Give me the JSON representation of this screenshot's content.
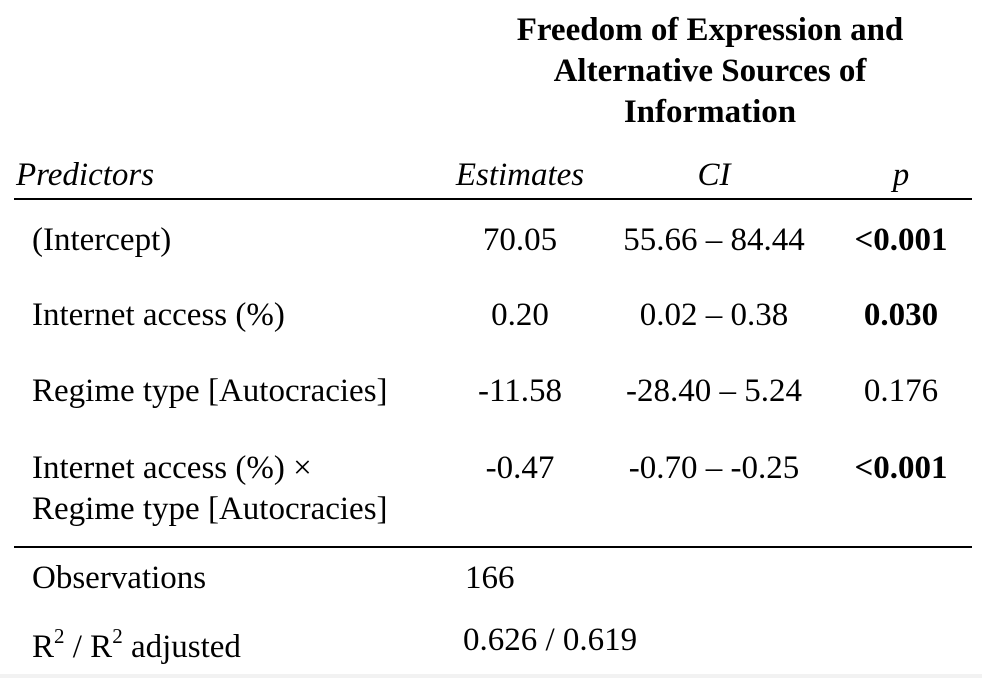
{
  "title_lines": [
    "Freedom of Expression and",
    "Alternative Sources of",
    "Information"
  ],
  "headers": {
    "predictors": "Predictors",
    "estimates": "Estimates",
    "ci": "CI",
    "p": "p"
  },
  "rows": [
    {
      "predictor": [
        "(Intercept)"
      ],
      "estimate": "70.05",
      "ci": "55.66 – 84.44",
      "p": "<0.001",
      "p_bold": true
    },
    {
      "predictor": [
        "Internet access (%)"
      ],
      "estimate": "0.20",
      "ci": "0.02 – 0.38",
      "p": "0.030",
      "p_bold": true
    },
    {
      "predictor": [
        "Regime type [Autocracies]"
      ],
      "estimate": "-11.58",
      "ci": "-28.40 – 5.24",
      "p": "0.176",
      "p_bold": false
    },
    {
      "predictor": [
        "Internet access (%) ×",
        "Regime type [Autocracies]"
      ],
      "estimate": "-0.47",
      "ci": "-0.70 – -0.25",
      "p": "<0.001",
      "p_bold": true
    }
  ],
  "stats": {
    "observations_label": "Observations",
    "observations_value": "166",
    "r2_label_r": "R",
    "r2_label_sup": "2",
    "r2_label_sep": " / R",
    "r2_label_sup2": "2",
    "r2_label_tail": " adjusted",
    "r2_value": "0.626 / 0.619"
  }
}
